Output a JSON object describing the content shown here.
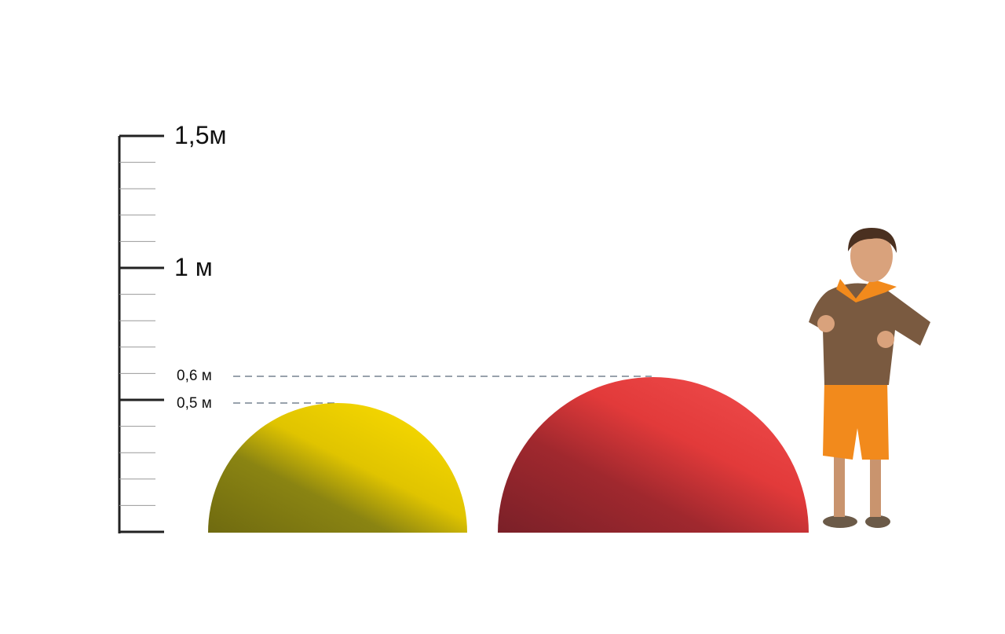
{
  "scale": {
    "unit": "м",
    "major_labels": [
      "1,5м",
      "1 м"
    ],
    "marker_labels": [
      "0,6 м",
      "0,5 м"
    ]
  },
  "objects": [
    {
      "name": "yellow-half-sphere",
      "height_m": 0.5,
      "color": "#f2d400"
    },
    {
      "name": "red-half-sphere",
      "height_m": 0.6,
      "color": "#e63c3c"
    }
  ],
  "colors": {
    "axis": "#222222",
    "minor_tick": "#999999",
    "guide_line": "#5a6a7a"
  }
}
